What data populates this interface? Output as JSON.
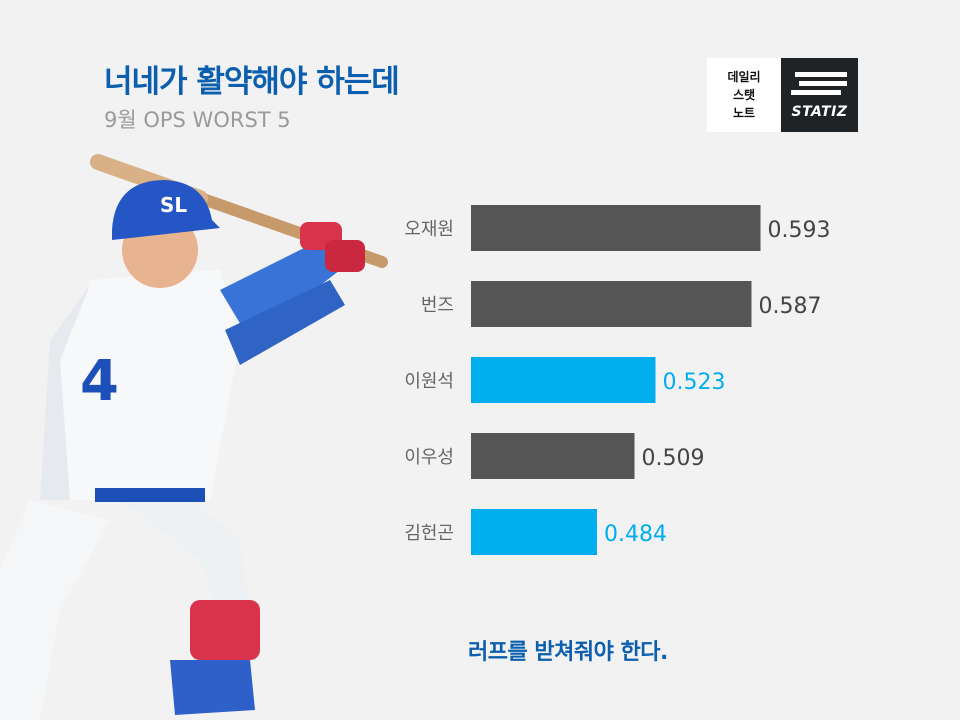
{
  "header": {
    "title": "너네가 활약해야 하는데",
    "subtitle": "9월 OPS WORST 5"
  },
  "logo": {
    "left_lines": [
      "데일리",
      "스탯",
      "노트"
    ],
    "right_text": "STATIZ"
  },
  "colors": {
    "title": "#0b5fae",
    "bar_default": "#555555",
    "bar_highlight": "#00aeef",
    "value_default": "#444444",
    "value_highlight": "#00aeef",
    "label": "#666666"
  },
  "chart_data": {
    "type": "bar",
    "orientation": "horizontal",
    "title": "9월 OPS WORST 5",
    "categories": [
      "오재원",
      "번즈",
      "이원석",
      "이우성",
      "김헌곤"
    ],
    "values": [
      0.593,
      0.587,
      0.523,
      0.509,
      0.484
    ],
    "value_labels": [
      "0.593",
      "0.587",
      "0.523",
      "0.509",
      "0.484"
    ],
    "highlighted": [
      false,
      false,
      true,
      false,
      true
    ],
    "xlim": [
      0.4,
      0.6
    ],
    "grid": false,
    "legend": "none"
  },
  "footer": {
    "text": "러프를 받쳐줘야 한다."
  }
}
